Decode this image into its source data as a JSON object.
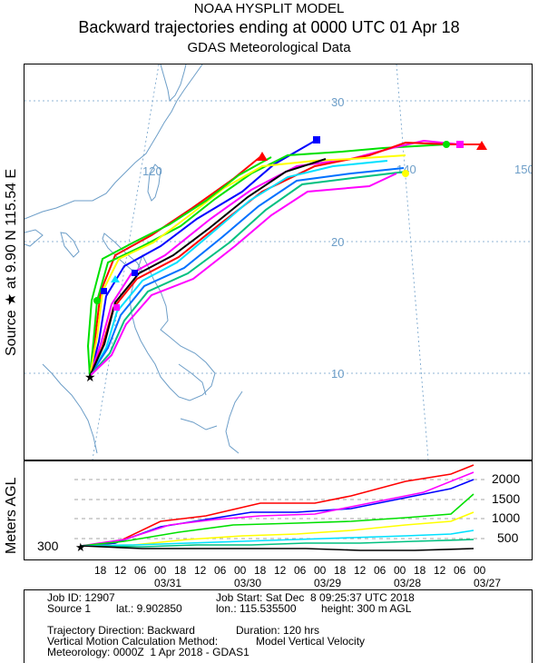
{
  "header": {
    "line1": "NOAA HYSPLIT MODEL",
    "line2": "Backward trajectories ending at 0000 UTC 01 Apr 18",
    "line3": "GDAS Meteorological Data"
  },
  "map": {
    "side_label": "Source ★ at    9.90 N  115.54 E",
    "lat_labels": [
      "30",
      "20",
      "10"
    ],
    "lon_labels": [
      "120",
      "140",
      "150"
    ],
    "source_marker": "★"
  },
  "height_panel": {
    "ylabel": "Meters AGL",
    "start_height": "300",
    "level_labels": [
      "2000",
      "1500",
      "1000",
      "500"
    ],
    "hour_labels": [
      "18",
      "12",
      "06",
      "00",
      "18",
      "12",
      "06",
      "00",
      "18",
      "12",
      "06",
      "00",
      "18",
      "12",
      "06",
      "00",
      "18",
      "12",
      "06",
      "00"
    ],
    "date_labels": [
      "03/31",
      "03/30",
      "03/29",
      "03/28",
      "03/27"
    ]
  },
  "footer": {
    "job_id": "Job ID: 12907",
    "job_start": "Job Start: Sat Dec  8 09:25:37 UTC 2018",
    "source": "Source 1",
    "lat": "lat.: 9.902850",
    "lon": "lon.: 115.535500",
    "height": "height: 300 m AGL",
    "direction": "Trajectory Direction: Backward",
    "duration": "Duration: 120 hrs",
    "vertical": "Vertical Motion Calculation Method:",
    "vertical_value": "Model Vertical Velocity",
    "meteorology": "Meteorology: 0000Z  1 Apr 2018 - GDAS1"
  },
  "colors": {
    "coast": "#6d9ec8",
    "grid": "#6d9ec8",
    "traj": [
      "#ff0000",
      "#0000ff",
      "#00e000",
      "#00e0ff",
      "#ff00ff",
      "#ffff00",
      "#000000",
      "#0070ff",
      "#00c080",
      "#ff8000"
    ]
  }
}
